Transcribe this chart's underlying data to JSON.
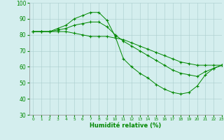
{
  "title": "",
  "xlabel": "Humidité relative (%)",
  "ylabel": "",
  "bg_color": "#d4eeee",
  "grid_color": "#aacccc",
  "line_color": "#008800",
  "marker": "+",
  "xlim": [
    -0.5,
    23
  ],
  "ylim": [
    30,
    100
  ],
  "xticks": [
    0,
    1,
    2,
    3,
    4,
    5,
    6,
    7,
    8,
    9,
    10,
    11,
    12,
    13,
    14,
    15,
    16,
    17,
    18,
    19,
    20,
    21,
    22,
    23
  ],
  "yticks": [
    30,
    40,
    50,
    60,
    70,
    80,
    90,
    100
  ],
  "series": [
    {
      "x": [
        0,
        1,
        2,
        3,
        4,
        5,
        6,
        7,
        8,
        9,
        10,
        11,
        12,
        13,
        14,
        15,
        16,
        17,
        18,
        19,
        20,
        21,
        22,
        23
      ],
      "y": [
        82,
        82,
        82,
        84,
        86,
        90,
        92,
        94,
        94,
        89,
        79,
        65,
        60,
        56,
        53,
        49,
        46,
        44,
        43,
        44,
        48,
        55,
        59,
        61
      ]
    },
    {
      "x": [
        0,
        1,
        2,
        3,
        4,
        5,
        6,
        7,
        8,
        9,
        10,
        11,
        12,
        13,
        14,
        15,
        16,
        17,
        18,
        19,
        20,
        21,
        22,
        23
      ],
      "y": [
        82,
        82,
        82,
        83,
        84,
        86,
        87,
        88,
        88,
        85,
        80,
        76,
        73,
        70,
        67,
        64,
        61,
        58,
        56,
        55,
        54,
        57,
        59,
        61
      ]
    },
    {
      "x": [
        0,
        1,
        2,
        3,
        4,
        5,
        6,
        7,
        8,
        9,
        10,
        11,
        12,
        13,
        14,
        15,
        16,
        17,
        18,
        19,
        20,
        21,
        22,
        23
      ],
      "y": [
        82,
        82,
        82,
        82,
        82,
        81,
        80,
        79,
        79,
        79,
        78,
        77,
        75,
        73,
        71,
        69,
        67,
        65,
        63,
        62,
        61,
        61,
        61,
        61
      ]
    }
  ]
}
